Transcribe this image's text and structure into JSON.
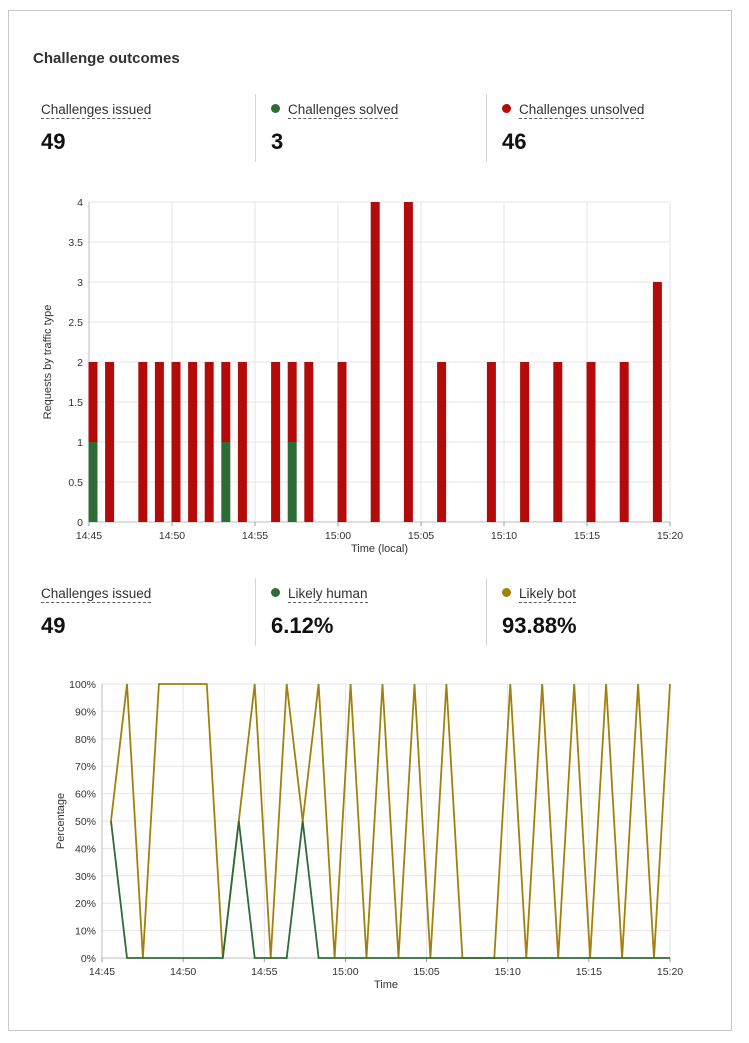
{
  "panel": {
    "title": "Challenge outcomes"
  },
  "stats1": [
    {
      "label": "Challenges issued",
      "value": "49",
      "color": ""
    },
    {
      "label": "Challenges solved",
      "value": "3",
      "color": "#2e6b37"
    },
    {
      "label": "Challenges unsolved",
      "value": "46",
      "color": "#b30a0a"
    }
  ],
  "stats2": [
    {
      "label": "Challenges issued",
      "value": "49",
      "color": ""
    },
    {
      "label": "Likely human",
      "value": "6.12%",
      "color": "#2e6b37"
    },
    {
      "label": "Likely bot",
      "value": "93.88%",
      "color": "#a3800b"
    }
  ],
  "chart_data": [
    {
      "type": "bar",
      "stacked": true,
      "xlabel": "Time (local)",
      "ylabel": "Requests by traffic type",
      "ylim": [
        0,
        4
      ],
      "yticks": [
        "0",
        "0.5",
        "1",
        "1.5",
        "2",
        "2.5",
        "3",
        "3.5",
        "4"
      ],
      "xticks": [
        "14:45",
        "14:50",
        "14:55",
        "15:00",
        "15:05",
        "15:10",
        "15:15",
        "15:20"
      ],
      "xdomain_minutes": [
        0,
        35
      ],
      "x": [
        "14:45",
        "14:46",
        "14:48",
        "14:49",
        "14:50",
        "14:51",
        "14:52",
        "14:53",
        "14:54",
        "14:56",
        "14:57",
        "14:58",
        "15:00",
        "15:02",
        "15:04",
        "15:06",
        "15:09",
        "15:11",
        "15:13",
        "15:15",
        "15:17",
        "15:19"
      ],
      "x_minutes": [
        0,
        1,
        3,
        4,
        5,
        6,
        7,
        8,
        9,
        11,
        12,
        13,
        15,
        17,
        19,
        21,
        24,
        26,
        28,
        30,
        32,
        34
      ],
      "series": [
        {
          "name": "Challenges solved",
          "color": "#2e6b37",
          "values": [
            1,
            0,
            0,
            0,
            0,
            0,
            0,
            1,
            0,
            0,
            1,
            0,
            0,
            0,
            0,
            0,
            0,
            0,
            0,
            0,
            0,
            0
          ]
        },
        {
          "name": "Challenges unsolved",
          "color": "#b30a0a",
          "values": [
            1,
            2,
            2,
            2,
            2,
            2,
            2,
            1,
            2,
            2,
            1,
            2,
            2,
            4,
            4,
            2,
            2,
            2,
            2,
            2,
            2,
            3
          ]
        }
      ],
      "grid": true
    },
    {
      "type": "line",
      "xlabel": "Time",
      "ylabel": "Percentage",
      "ylim": [
        0,
        100
      ],
      "yticks": [
        "0%",
        "10%",
        "20%",
        "30%",
        "40%",
        "50%",
        "60%",
        "70%",
        "80%",
        "90%",
        "100%"
      ],
      "xticks": [
        "14:45",
        "14:50",
        "14:55",
        "15:00",
        "15:05",
        "15:10",
        "15:15",
        "15:20"
      ],
      "xdomain_minutes": [
        0,
        35
      ],
      "x_minutes": [
        0,
        1,
        2,
        3,
        4,
        5,
        6,
        7,
        8,
        9,
        10,
        11,
        12,
        13,
        14,
        15,
        16,
        17,
        18,
        19,
        20,
        21,
        22,
        23,
        24,
        25,
        26,
        27,
        28,
        29,
        30,
        31,
        32,
        33,
        34,
        35
      ],
      "series": [
        {
          "name": "Likely human",
          "color": "#2e6b37",
          "values": [
            50,
            0,
            0,
            0,
            0,
            0,
            0,
            0,
            50,
            0,
            0,
            0,
            50,
            0,
            0,
            0,
            0,
            0,
            0,
            0,
            0,
            0,
            0,
            0,
            0,
            0,
            0,
            0,
            0,
            0,
            0,
            0,
            0,
            0,
            0,
            0
          ]
        },
        {
          "name": "Likely bot",
          "color": "#a3800b",
          "values": [
            50,
            100,
            0,
            100,
            100,
            100,
            100,
            0,
            50,
            100,
            0,
            100,
            50,
            100,
            0,
            100,
            0,
            100,
            0,
            100,
            0,
            100,
            0,
            0,
            0,
            100,
            0,
            100,
            0,
            100,
            0,
            100,
            0,
            100,
            0,
            100
          ]
        }
      ],
      "grid": true
    }
  ]
}
